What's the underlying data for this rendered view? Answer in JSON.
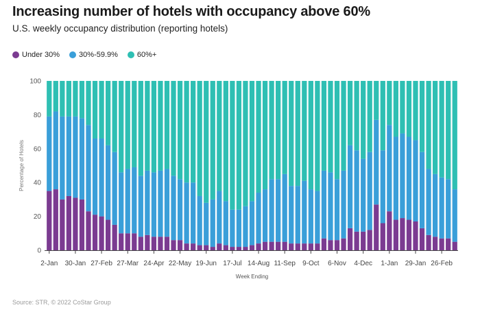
{
  "title": "Increasing number of hotels with occupancy above 60%",
  "subtitle": "U.S. weekly occupancy distribution (reporting hotels)",
  "source": "Source: STR, © 2022 CoStar Group",
  "colors": {
    "under30": "#7b3b91",
    "mid": "#3a9fd9",
    "over60": "#2ebfb3"
  },
  "chart_data": {
    "type": "bar",
    "stacked": true,
    "xlabel": "Week Ending",
    "ylabel": "Percentage of Hotels",
    "ylim": [
      0,
      100
    ],
    "yticks": [
      0,
      20,
      40,
      60,
      80,
      100
    ],
    "grid": false,
    "legend_position": "top-left",
    "xtick_labels": [
      {
        "index": 0,
        "label": "2-Jan"
      },
      {
        "index": 4,
        "label": "30-Jan"
      },
      {
        "index": 8,
        "label": "27-Feb"
      },
      {
        "index": 12,
        "label": "27-Mar"
      },
      {
        "index": 16,
        "label": "24-Apr"
      },
      {
        "index": 20,
        "label": "22-May"
      },
      {
        "index": 24,
        "label": "19-Jun"
      },
      {
        "index": 28,
        "label": "17-Jul"
      },
      {
        "index": 32,
        "label": "14-Aug"
      },
      {
        "index": 36,
        "label": "11-Sep"
      },
      {
        "index": 40,
        "label": "9-Oct"
      },
      {
        "index": 44,
        "label": "6-Nov"
      },
      {
        "index": 48,
        "label": "4-Dec"
      },
      {
        "index": 52,
        "label": "1-Jan"
      },
      {
        "index": 56,
        "label": "29-Jan"
      },
      {
        "index": 60,
        "label": "26-Feb"
      }
    ],
    "series": [
      {
        "name": "Under 30%",
        "values": [
          35,
          36,
          30,
          32,
          31,
          30,
          23,
          21,
          20,
          18,
          15,
          10,
          10,
          10,
          8,
          9,
          8,
          8,
          8,
          6,
          6,
          4,
          4,
          3,
          3,
          2,
          4,
          3,
          2,
          2,
          2,
          3,
          4,
          5,
          5,
          5,
          5,
          4,
          4,
          4,
          4,
          4,
          7,
          6,
          6,
          7,
          13,
          11,
          11,
          12,
          27,
          16,
          23,
          18,
          19,
          18,
          17,
          13,
          9,
          8,
          7,
          7,
          5
        ]
      },
      {
        "name": "30%-59.9%",
        "values": [
          44,
          46,
          49,
          47,
          48,
          48,
          51,
          45,
          46,
          44,
          43,
          36,
          38,
          39,
          36,
          38,
          38,
          39,
          40,
          38,
          36,
          36,
          36,
          29,
          25,
          28,
          31,
          26,
          22,
          22,
          24,
          26,
          30,
          31,
          37,
          37,
          40,
          34,
          34,
          37,
          32,
          31,
          40,
          40,
          36,
          40,
          49,
          48,
          43,
          46,
          50,
          43,
          51,
          49,
          50,
          49,
          48,
          45,
          39,
          37,
          36,
          35,
          31
        ]
      },
      {
        "name": "60%+",
        "values": [
          21,
          18,
          21,
          21,
          21,
          22,
          26,
          34,
          34,
          38,
          42,
          54,
          52,
          51,
          56,
          53,
          54,
          53,
          52,
          56,
          58,
          60,
          60,
          68,
          72,
          70,
          65,
          71,
          76,
          76,
          74,
          71,
          66,
          64,
          58,
          58,
          55,
          62,
          62,
          59,
          64,
          65,
          53,
          54,
          58,
          53,
          38,
          41,
          46,
          42,
          23,
          41,
          26,
          33,
          31,
          33,
          35,
          42,
          52,
          55,
          57,
          58,
          64
        ]
      }
    ]
  }
}
